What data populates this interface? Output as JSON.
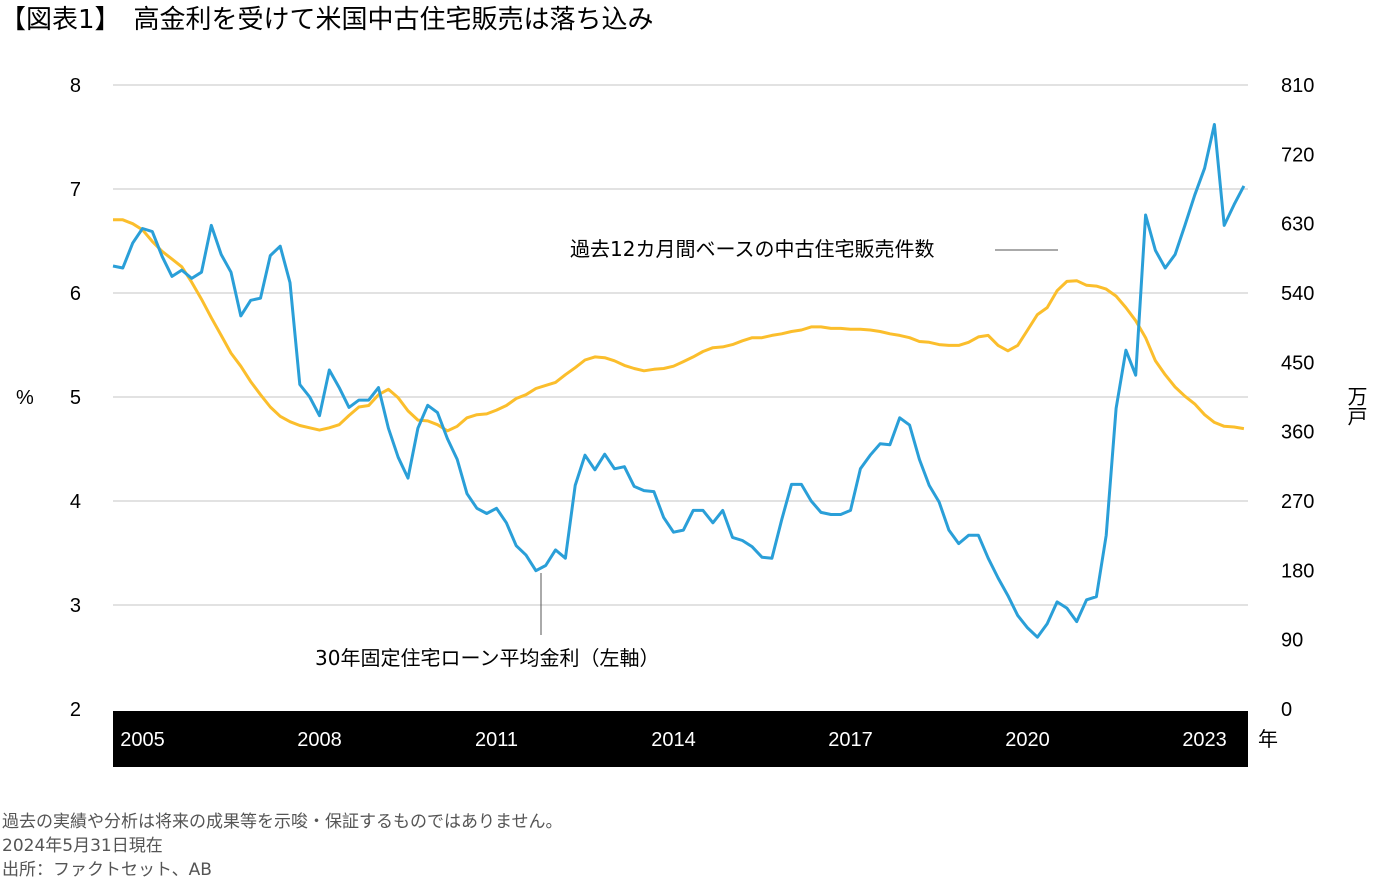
{
  "chart_data": {
    "type": "line",
    "title": "【図表1】　高金利を受けて米国中古住宅販売は落ち込み",
    "x_start": "2005-01",
    "x_step_months": 2,
    "x_ticks": [
      "2005",
      "2008",
      "2011",
      "2014",
      "2017",
      "2020",
      "2023"
    ],
    "x_unit": "年",
    "y_left": {
      "label": "%",
      "ticks": [
        "2",
        "3",
        "4",
        "5",
        "6",
        "7",
        "8"
      ],
      "range": [
        2,
        8
      ]
    },
    "y_right": {
      "label": "万戸",
      "ticks": [
        "0",
        "90",
        "180",
        "270",
        "360",
        "450",
        "540",
        "630",
        "720",
        "810"
      ],
      "range": [
        0,
        810
      ]
    },
    "grid": true,
    "series": [
      {
        "name": "30年固定住宅ローン平均金利（左軸）",
        "axis": "left",
        "color": "#2a9fd8",
        "values": [
          6.26,
          6.24,
          6.48,
          6.62,
          6.59,
          6.35,
          6.16,
          6.22,
          6.14,
          6.2,
          6.65,
          6.37,
          6.2,
          5.78,
          5.93,
          5.95,
          6.36,
          6.45,
          6.1,
          5.12,
          5.0,
          4.82,
          5.26,
          5.09,
          4.9,
          4.97,
          4.97,
          5.09,
          4.7,
          4.42,
          4.22,
          4.7,
          4.92,
          4.85,
          4.6,
          4.4,
          4.07,
          3.93,
          3.88,
          3.93,
          3.79,
          3.57,
          3.48,
          3.33,
          3.38,
          3.53,
          3.45,
          4.15,
          4.44,
          4.3,
          4.45,
          4.31,
          4.33,
          4.14,
          4.1,
          4.09,
          3.84,
          3.7,
          3.72,
          3.91,
          3.91,
          3.79,
          3.91,
          3.65,
          3.62,
          3.56,
          3.46,
          3.45,
          3.82,
          4.16,
          4.16,
          4.0,
          3.89,
          3.87,
          3.87,
          3.91,
          4.31,
          4.44,
          4.55,
          4.54,
          4.8,
          4.73,
          4.4,
          4.15,
          3.99,
          3.72,
          3.59,
          3.67,
          3.67,
          3.45,
          3.26,
          3.09,
          2.9,
          2.78,
          2.69,
          2.82,
          3.03,
          2.97,
          2.84,
          3.05,
          3.08,
          3.67,
          4.89,
          5.45,
          5.21,
          6.75,
          6.41,
          6.24,
          6.37,
          6.65,
          6.94,
          7.2,
          7.62,
          6.65,
          6.85,
          7.03
        ]
      },
      {
        "name": "過去12カ月間ベースの中古住宅販売件数",
        "axis": "right",
        "color": "#f9b e2a",
        "values": [
          635,
          635,
          630,
          622,
          607,
          594,
          584,
          574,
          554,
          532,
          508,
          485,
          462,
          445,
          425,
          408,
          392,
          380,
          373,
          368,
          365,
          362,
          365,
          369,
          381,
          392,
          394,
          408,
          415,
          404,
          387,
          375,
          374,
          369,
          361,
          367,
          378,
          382,
          383,
          388,
          394,
          403,
          408,
          416,
          420,
          424,
          434,
          443,
          453,
          457,
          456,
          452,
          446,
          442,
          439,
          441,
          442,
          445,
          451,
          457,
          464,
          469,
          470,
          473,
          478,
          482,
          482,
          485,
          487,
          490,
          492,
          496,
          496,
          494,
          494,
          493,
          493,
          492,
          490,
          487,
          485,
          482,
          477,
          476,
          473,
          472,
          472,
          476,
          483,
          485,
          472,
          465,
          472,
          492,
          512,
          521,
          543,
          555,
          556,
          550,
          549,
          545,
          536,
          521,
          504,
          482,
          452,
          434,
          418,
          406,
          396,
          382,
          372,
          367,
          366,
          364
        ]
      }
    ]
  },
  "footer": {
    "disclaimer": "過去の実績や分析は将来の成果等を示唆・保証するものではありません。",
    "as_of": "2024年5月31日現在",
    "source": "出所：ファクトセット、AB"
  }
}
